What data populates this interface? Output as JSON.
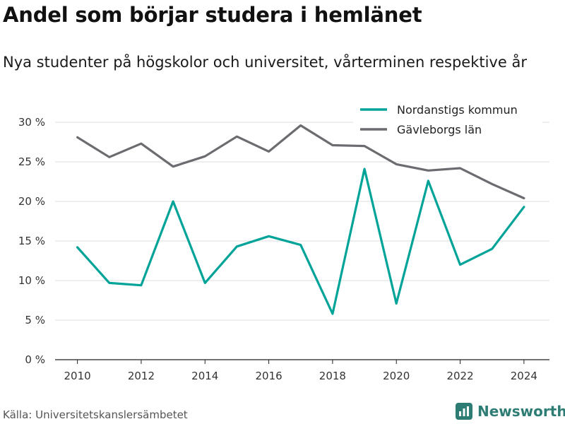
{
  "title": "Andel som börjar studera i hemlänet",
  "subtitle": "Nya studenter på högskolor och universitet, vårterminen respektive år",
  "source": "Källa: Universitetskanslersämbetet",
  "brand": {
    "name": "Newsworthy",
    "logo_icon": "newsworthy-logo-icon",
    "color": "#2e7d74"
  },
  "chart_data": {
    "type": "line",
    "x": [
      2010,
      2011,
      2012,
      2013,
      2014,
      2015,
      2016,
      2017,
      2018,
      2019,
      2020,
      2021,
      2022,
      2023,
      2024
    ],
    "series": [
      {
        "name": "Nordanstigs kommun",
        "color": "#00a398",
        "values": [
          14.2,
          9.7,
          9.4,
          20.0,
          9.7,
          14.3,
          15.6,
          14.5,
          5.8,
          24.1,
          7.1,
          22.6,
          12.0,
          14.0,
          19.3
        ]
      },
      {
        "name": "Gävleborgs län",
        "color": "#6b6b70",
        "values": [
          28.1,
          25.6,
          27.3,
          24.4,
          25.7,
          28.2,
          26.3,
          29.6,
          27.1,
          27.0,
          24.7,
          23.9,
          24.2,
          22.2,
          20.4
        ]
      }
    ],
    "xlim": [
      2009.3,
      2024.8
    ],
    "ylim": [
      0,
      30
    ],
    "y_ticks": [
      0,
      5,
      10,
      15,
      20,
      25,
      30
    ],
    "y_tick_labels": [
      "0 %",
      "5 %",
      "10 %",
      "15 %",
      "20 %",
      "25 %",
      "30 %"
    ],
    "x_ticks": [
      2010,
      2012,
      2014,
      2016,
      2018,
      2020,
      2022,
      2024
    ],
    "x_tick_labels": [
      "2010",
      "2012",
      "2014",
      "2016",
      "2018",
      "2020",
      "2022",
      "2024"
    ],
    "grid": "horizontal",
    "legend_position": "top-right"
  }
}
